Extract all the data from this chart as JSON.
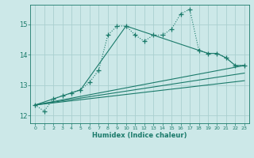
{
  "xlabel": "Humidex (Indice chaleur)",
  "ylabel": "",
  "bg_color": "#cce8e8",
  "grid_color": "#aacfcf",
  "line_color": "#1a7a6a",
  "xlim": [
    -0.5,
    23.5
  ],
  "ylim": [
    11.75,
    15.65
  ],
  "yticks": [
    12,
    13,
    14,
    15
  ],
  "xticks": [
    0,
    1,
    2,
    3,
    4,
    5,
    6,
    7,
    8,
    9,
    10,
    11,
    12,
    13,
    14,
    15,
    16,
    17,
    18,
    19,
    20,
    21,
    22,
    23
  ],
  "main_line_x": [
    0,
    1,
    2,
    3,
    4,
    5,
    6,
    7,
    8,
    9,
    10,
    11,
    12,
    13,
    14,
    15,
    16,
    17,
    18,
    19,
    20,
    21,
    22,
    23
  ],
  "main_line_y": [
    12.35,
    12.15,
    12.55,
    12.65,
    12.75,
    12.85,
    13.1,
    13.5,
    14.65,
    14.95,
    14.95,
    14.65,
    14.45,
    14.65,
    14.65,
    14.85,
    15.35,
    15.5,
    14.15,
    14.05,
    14.05,
    13.9,
    13.65,
    13.65
  ],
  "line2_x": [
    0,
    4,
    5,
    10,
    18,
    19,
    20,
    21,
    22,
    23
  ],
  "line2_y": [
    12.35,
    12.75,
    12.85,
    14.95,
    14.15,
    14.05,
    14.05,
    13.9,
    13.65,
    13.65
  ],
  "line3_x": [
    0,
    23
  ],
  "line3_y": [
    12.35,
    13.65
  ],
  "line4_x": [
    0,
    23
  ],
  "line4_y": [
    12.35,
    13.4
  ],
  "line5_x": [
    0,
    23
  ],
  "line5_y": [
    12.35,
    13.15
  ]
}
